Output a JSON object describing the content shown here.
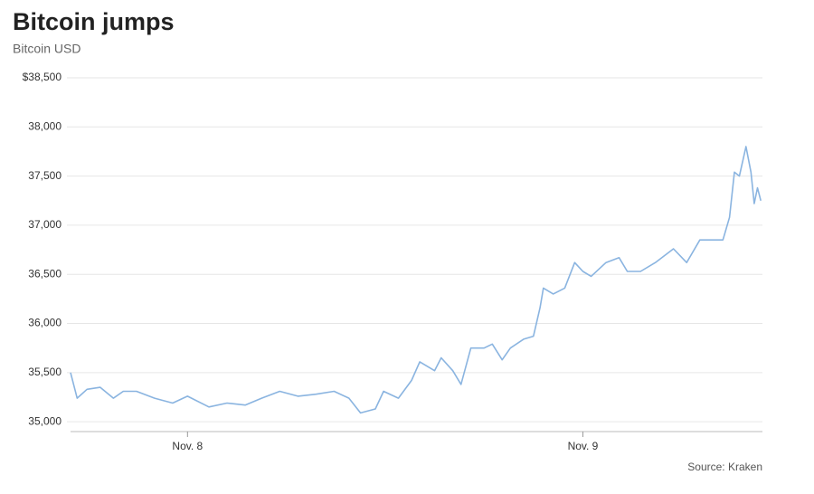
{
  "chart_data": {
    "type": "line",
    "title": "Bitcoin jumps",
    "subtitle": "Bitcoin USD",
    "source": "Source: Kraken",
    "x": [
      -7.1,
      -6.7,
      -6.1,
      -5.3,
      -4.5,
      -3.9,
      -3.1,
      -2.0,
      -0.9,
      0.0,
      1.3,
      2.4,
      3.5,
      4.5,
      5.6,
      6.7,
      7.8,
      8.9,
      9.8,
      10.5,
      11.4,
      11.9,
      12.8,
      13.6,
      14.1,
      15.0,
      15.4,
      16.1,
      16.6,
      17.2,
      18.0,
      18.5,
      19.1,
      19.6,
      20.4,
      21.0,
      21.4,
      21.6,
      22.2,
      22.9,
      23.5,
      24.0,
      24.5,
      25.4,
      26.2,
      26.7,
      27.5,
      28.4,
      29.5,
      30.3,
      31.1,
      31.9,
      32.5,
      32.9,
      33.2,
      33.5,
      33.9,
      34.2,
      34.4,
      34.6,
      34.8
    ],
    "series": [
      {
        "name": "Bitcoin USD",
        "color": "#8ab4e0",
        "values": [
          35500,
          35240,
          35330,
          35350,
          35240,
          35310,
          35310,
          35240,
          35190,
          35260,
          35150,
          35190,
          35170,
          35240,
          35310,
          35260,
          35280,
          35310,
          35240,
          35090,
          35130,
          35310,
          35240,
          35420,
          35610,
          35520,
          35650,
          35520,
          35380,
          35750,
          35750,
          35790,
          35630,
          35750,
          35840,
          35870,
          36160,
          36360,
          36300,
          36360,
          36620,
          36530,
          36480,
          36620,
          36670,
          36530,
          36530,
          36620,
          36760,
          36620,
          36850,
          36850,
          36850,
          37080,
          37540,
          37500,
          37800,
          37540,
          37220,
          37380,
          37250
        ]
      }
    ],
    "xlim": [
      -7.1,
      34.9
    ],
    "xticks": [
      {
        "value": 0,
        "label": "Nov. 8"
      },
      {
        "value": 24,
        "label": "Nov. 9"
      }
    ],
    "ylim": [
      34900,
      38500
    ],
    "yticks": [
      {
        "value": 35000,
        "label": "35,000"
      },
      {
        "value": 35500,
        "label": "35,500"
      },
      {
        "value": 36000,
        "label": "36,000"
      },
      {
        "value": 36500,
        "label": "36,500"
      },
      {
        "value": 37000,
        "label": "37,000"
      },
      {
        "value": 37500,
        "label": "37,500"
      },
      {
        "value": 38000,
        "label": "38,000"
      },
      {
        "value": 38500,
        "label": "$38,500"
      }
    ],
    "grid": true
  }
}
